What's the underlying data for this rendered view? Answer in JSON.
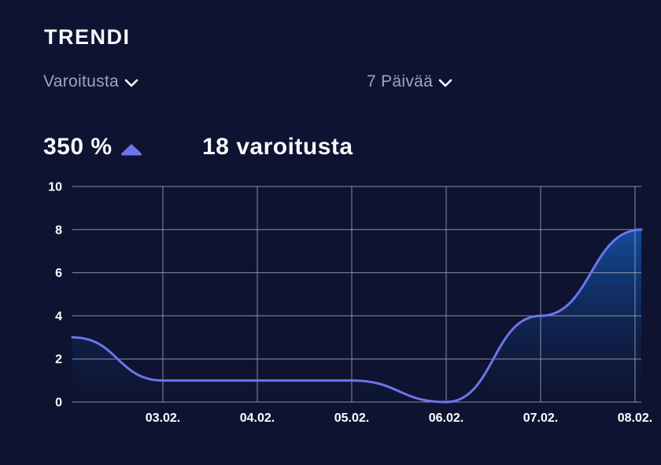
{
  "card": {
    "title": "TRENDI"
  },
  "filters": {
    "metric_dropdown": {
      "label": "Varoitusta",
      "icon": "chevron-down-icon"
    },
    "period_dropdown": {
      "label": "7 Päivää",
      "icon": "chevron-down-icon"
    }
  },
  "stats": {
    "change_percent": "350 %",
    "trend_direction": "up",
    "trend_icon": "triangle-up-icon",
    "total_label": "18 varoitusta"
  },
  "colors": {
    "background": "#0d1330",
    "title_text": "#f5f7ff",
    "muted_label": "#9ea4c8",
    "chevron": "#ffffff",
    "accent_triangle": "#6e74f0",
    "line": "#6e74ea",
    "area_top": "#1568cf",
    "area_bottom": "#0e1636",
    "grid": "#a6aab4",
    "tick_text": "#ffffff"
  },
  "chart_data": {
    "type": "area",
    "title": "",
    "xlabel": "",
    "ylabel": "",
    "categories": [
      "",
      "03.02.",
      "04.02.",
      "05.02.",
      "06.02.",
      "07.02.",
      "08.02."
    ],
    "x_ticks": [
      "03.02.",
      "04.02.",
      "05.02.",
      "06.02.",
      "07.02.",
      "08.02."
    ],
    "series": [
      {
        "name": "varoitusta",
        "values": [
          3,
          1,
          1,
          1,
          0,
          4,
          8
        ]
      }
    ],
    "y_ticks": [
      0,
      2,
      4,
      6,
      8,
      10
    ],
    "ylim": [
      0,
      10
    ],
    "grid": true,
    "legend_position": "none"
  }
}
